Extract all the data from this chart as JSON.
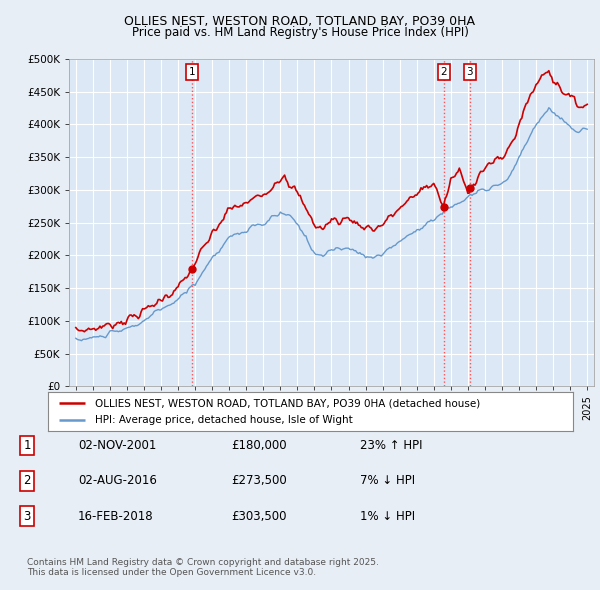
{
  "title": "OLLIES NEST, WESTON ROAD, TOTLAND BAY, PO39 0HA",
  "subtitle": "Price paid vs. HM Land Registry's House Price Index (HPI)",
  "background_color": "#e8eef5",
  "plot_bg_color": "#dce8f5",
  "ylim": [
    0,
    500000
  ],
  "yticks": [
    0,
    50000,
    100000,
    150000,
    200000,
    250000,
    300000,
    350000,
    400000,
    450000,
    500000
  ],
  "ytick_labels": [
    "£0",
    "£50K",
    "£100K",
    "£150K",
    "£200K",
    "£250K",
    "£300K",
    "£350K",
    "£400K",
    "£450K",
    "£500K"
  ],
  "xlim_start": 1994.6,
  "xlim_end": 2025.4,
  "xticks": [
    1995,
    1996,
    1997,
    1998,
    1999,
    2000,
    2001,
    2002,
    2003,
    2004,
    2005,
    2006,
    2007,
    2008,
    2009,
    2010,
    2011,
    2012,
    2013,
    2014,
    2015,
    2016,
    2017,
    2018,
    2019,
    2020,
    2021,
    2022,
    2023,
    2024,
    2025
  ],
  "sale_dates": [
    2001.84,
    2016.58,
    2018.12
  ],
  "sale_prices": [
    180000,
    273500,
    303500
  ],
  "sale_labels": [
    "1",
    "2",
    "3"
  ],
  "legend_line1": "OLLIES NEST, WESTON ROAD, TOTLAND BAY, PO39 0HA (detached house)",
  "legend_line2": "HPI: Average price, detached house, Isle of Wight",
  "table_data": [
    [
      "1",
      "02-NOV-2001",
      "£180,000",
      "23% ↑ HPI"
    ],
    [
      "2",
      "02-AUG-2016",
      "£273,500",
      "7% ↓ HPI"
    ],
    [
      "3",
      "16-FEB-2018",
      "£303,500",
      "1% ↓ HPI"
    ]
  ],
  "footnote": "Contains HM Land Registry data © Crown copyright and database right 2025.\nThis data is licensed under the Open Government Licence v3.0.",
  "red_line_color": "#cc0000",
  "blue_line_color": "#6699cc"
}
